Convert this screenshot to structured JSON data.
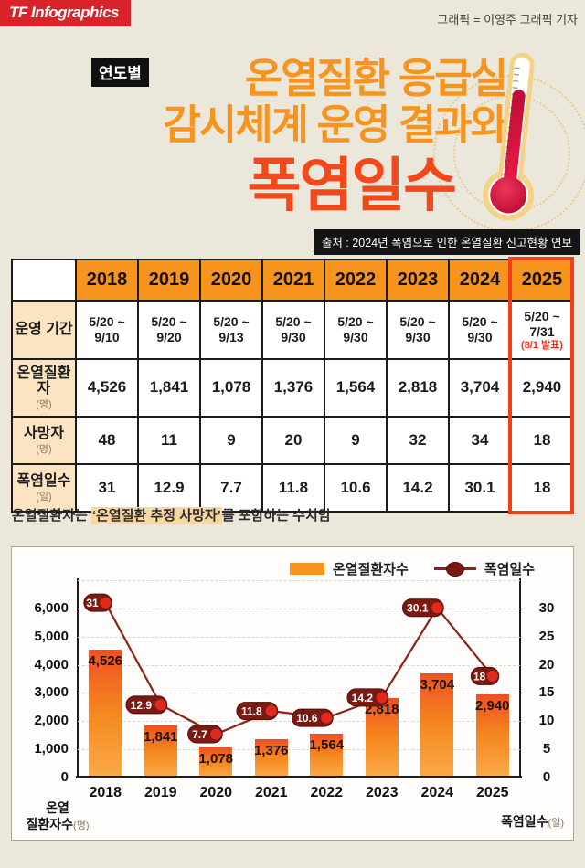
{
  "header": {
    "logo": "TF Infographics",
    "credit": "그래픽 = 이영주 그래픽 기자"
  },
  "title": {
    "badge": "연도별",
    "line1": "온열질환 응급실",
    "line2": "감시체계 운영 결과와",
    "line3": "폭염일수"
  },
  "source": "출처 : 2024년 폭염으로 인한 온열질환 신고현황 연보",
  "table": {
    "years": [
      "2018",
      "2019",
      "2020",
      "2021",
      "2022",
      "2023",
      "2024",
      "2025"
    ],
    "highlight_year": "2025",
    "highlight_color": "#f23f17",
    "rows": [
      {
        "label": "운영 기간",
        "unit": "",
        "kind": "period",
        "values": [
          "5/20 ~\n9/10",
          "5/20 ~\n9/20",
          "5/20 ~\n9/13",
          "5/20 ~\n9/30",
          "5/20 ~\n9/30",
          "5/20 ~\n9/30",
          "5/20 ~\n9/30",
          "5/20 ~\n7/31"
        ],
        "note2025": "(8/1 발표)"
      },
      {
        "label": "온열질환자",
        "unit": "(명)",
        "kind": "number",
        "values": [
          "4,526",
          "1,841",
          "1,078",
          "1,376",
          "1,564",
          "2,818",
          "3,704",
          "2,940"
        ]
      },
      {
        "label": "사망자",
        "unit": "(명)",
        "kind": "number",
        "values": [
          "48",
          "11",
          "9",
          "20",
          "9",
          "32",
          "34",
          "18"
        ]
      },
      {
        "label": "폭염일수",
        "unit": "(일)",
        "kind": "number",
        "values": [
          "31",
          "12.9",
          "7.7",
          "11.8",
          "10.6",
          "14.2",
          "30.1",
          "18"
        ]
      }
    ]
  },
  "note": {
    "prefix": "온열질환자는 ",
    "highlight": "‘온열질환 추정 사망자’",
    "suffix": "를 포함하는 수치임"
  },
  "chart_data": {
    "type": "bar+line combo",
    "categories": [
      "2018",
      "2019",
      "2020",
      "2021",
      "2022",
      "2023",
      "2024",
      "2025"
    ],
    "series": [
      {
        "name": "온열질환자수",
        "type": "bar",
        "axis": "left",
        "values": [
          4526,
          1841,
          1078,
          1376,
          1564,
          2818,
          3704,
          2940
        ],
        "labels": [
          "4,526",
          "1,841",
          "1,078",
          "1,376",
          "1,564",
          "2,818",
          "3,704",
          "2,940"
        ]
      },
      {
        "name": "폭염일수",
        "type": "line",
        "axis": "right",
        "values": [
          31,
          12.9,
          7.7,
          11.8,
          10.6,
          14.2,
          30.1,
          18
        ],
        "labels": [
          "31",
          "12.9",
          "7.7",
          "11.8",
          "10.6",
          "14.2",
          "30.1",
          "18"
        ]
      }
    ],
    "left_axis": {
      "max": 7000,
      "ticks": [
        0,
        1000,
        2000,
        3000,
        4000,
        5000,
        6000
      ],
      "tick_labels": [
        "0",
        "1,000",
        "2,000",
        "3,000",
        "4,000",
        "5,000",
        "6,000"
      ],
      "title_line1": "온열",
      "title_line2": "질환자수",
      "unit": "(명)"
    },
    "right_axis": {
      "max": 35,
      "ticks": [
        0,
        5,
        10,
        15,
        20,
        25,
        30
      ],
      "tick_labels": [
        "0",
        "5",
        "10",
        "15",
        "20",
        "25",
        "30"
      ],
      "title": "폭염일수",
      "unit": "(일)"
    },
    "grid": "dashed horizontal",
    "legend_position": "top-right",
    "colors": {
      "bar_top": "#ef4f22",
      "bar_bottom": "#fbaa4a",
      "bar_flat": "#f7941d",
      "line": "#8c2318",
      "marker": "#e02a1e",
      "pill": "#7a1a12"
    }
  }
}
